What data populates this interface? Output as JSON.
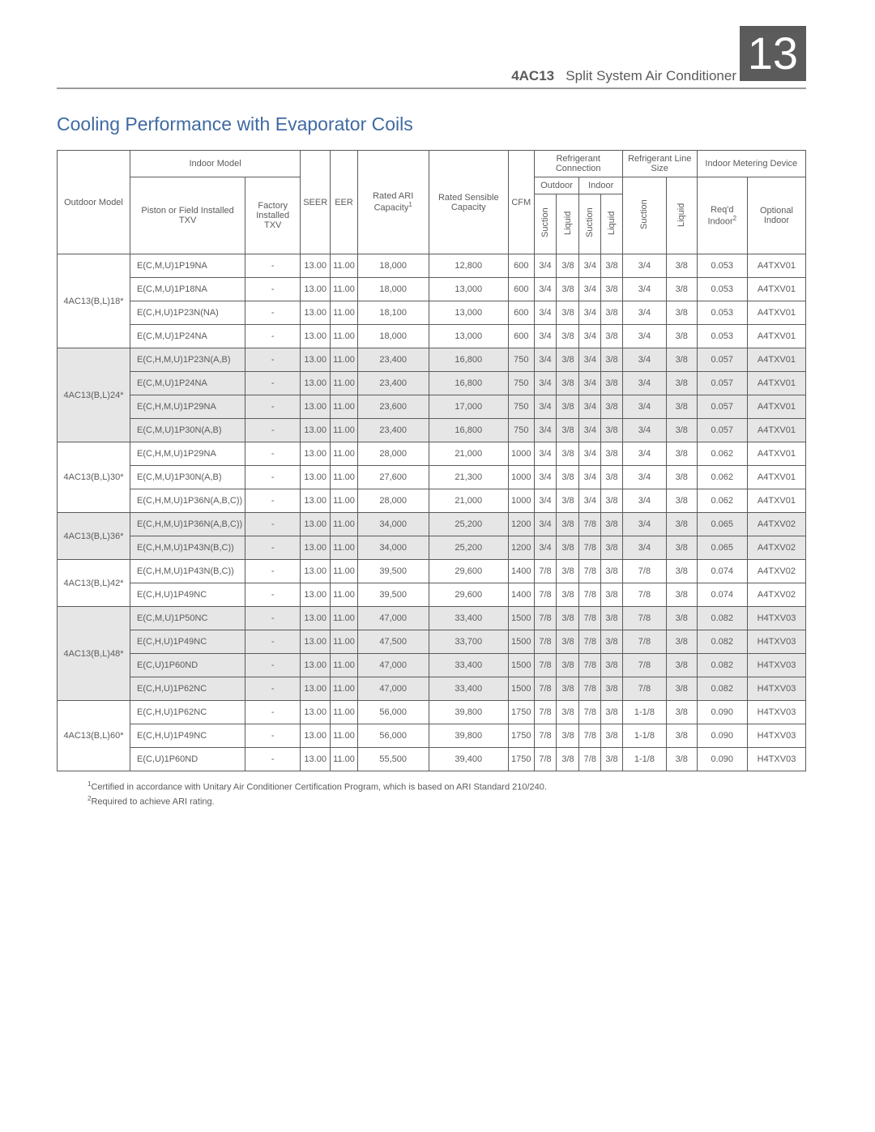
{
  "header": {
    "product_code": "4AC13",
    "product_name": "Split System Air Conditioner",
    "badge": "13"
  },
  "section_title": "Cooling Performance with Evaporator Coils",
  "columns": {
    "outdoor_model": "Outdoor Model",
    "indoor_model": "Indoor Model",
    "piston_field": "Piston or Field Installed TXV",
    "factory_txv": "Factory Installed TXV",
    "seer": "SEER",
    "eer": "EER",
    "rated_ari": "Rated ARI Capacity",
    "rated_sensible": "Rated Sensible Capacity",
    "cfm": "CFM",
    "refrig_conn": "Refrigerant Connection",
    "refrig_line": "Refrigerant Line Size",
    "indoor_metering": "Indoor Metering Device",
    "outdoor": "Outdoor",
    "indoor": "Indoor",
    "suction": "Suction",
    "liquid": "Liquid",
    "reqd_indoor": "Req'd Indoor",
    "optional_indoor": "Optional Indoor"
  },
  "styling": {
    "header_bg": "#5b5b5b",
    "header_text_color": "#ffffff",
    "title_color": "#3f6aa3",
    "text_color": "#5b5b5b",
    "border_color": "#5b5b5b",
    "shade_bg": "#e6e6e6",
    "font_size_body": 11,
    "font_size_title": 23
  },
  "groups": [
    {
      "outdoor": "4AC13(B,L)18*",
      "shade": false,
      "rows": [
        {
          "a": "E(C,M,U)1P19NA",
          "b": "-",
          "seer": "13.00",
          "eer": "11.00",
          "ari": "18,000",
          "sens": "12,800",
          "cfm": "600",
          "os": "3/4",
          "ol": "3/8",
          "is": "3/4",
          "il": "3/8",
          "ls": "3/4",
          "ll": "3/8",
          "req": "0.053",
          "opt": "A4TXV01"
        },
        {
          "a": "E(C,M,U)1P18NA",
          "b": "-",
          "seer": "13.00",
          "eer": "11.00",
          "ari": "18,000",
          "sens": "13,000",
          "cfm": "600",
          "os": "3/4",
          "ol": "3/8",
          "is": "3/4",
          "il": "3/8",
          "ls": "3/4",
          "ll": "3/8",
          "req": "0.053",
          "opt": "A4TXV01"
        },
        {
          "a": "E(C,H,U)1P23N(NA)",
          "b": "-",
          "seer": "13.00",
          "eer": "11.00",
          "ari": "18,100",
          "sens": "13,000",
          "cfm": "600",
          "os": "3/4",
          "ol": "3/8",
          "is": "3/4",
          "il": "3/8",
          "ls": "3/4",
          "ll": "3/8",
          "req": "0.053",
          "opt": "A4TXV01"
        },
        {
          "a": "E(C,M,U)1P24NA",
          "b": "-",
          "seer": "13.00",
          "eer": "11.00",
          "ari": "18,000",
          "sens": "13,000",
          "cfm": "600",
          "os": "3/4",
          "ol": "3/8",
          "is": "3/4",
          "il": "3/8",
          "ls": "3/4",
          "ll": "3/8",
          "req": "0.053",
          "opt": "A4TXV01"
        }
      ]
    },
    {
      "outdoor": "4AC13(B,L)24*",
      "shade": true,
      "rows": [
        {
          "a": "E(C,H,M,U)1P23N(A,B)",
          "b": "-",
          "seer": "13.00",
          "eer": "11.00",
          "ari": "23,400",
          "sens": "16,800",
          "cfm": "750",
          "os": "3/4",
          "ol": "3/8",
          "is": "3/4",
          "il": "3/8",
          "ls": "3/4",
          "ll": "3/8",
          "req": "0.057",
          "opt": "A4TXV01"
        },
        {
          "a": "E(C,M,U)1P24NA",
          "b": "-",
          "seer": "13.00",
          "eer": "11.00",
          "ari": "23,400",
          "sens": "16,800",
          "cfm": "750",
          "os": "3/4",
          "ol": "3/8",
          "is": "3/4",
          "il": "3/8",
          "ls": "3/4",
          "ll": "3/8",
          "req": "0.057",
          "opt": "A4TXV01"
        },
        {
          "a": "E(C,H,M,U)1P29NA",
          "b": "-",
          "seer": "13.00",
          "eer": "11.00",
          "ari": "23,600",
          "sens": "17,000",
          "cfm": "750",
          "os": "3/4",
          "ol": "3/8",
          "is": "3/4",
          "il": "3/8",
          "ls": "3/4",
          "ll": "3/8",
          "req": "0.057",
          "opt": "A4TXV01"
        },
        {
          "a": "E(C,M,U)1P30N(A,B)",
          "b": "-",
          "seer": "13.00",
          "eer": "11.00",
          "ari": "23,400",
          "sens": "16,800",
          "cfm": "750",
          "os": "3/4",
          "ol": "3/8",
          "is": "3/4",
          "il": "3/8",
          "ls": "3/4",
          "ll": "3/8",
          "req": "0.057",
          "opt": "A4TXV01"
        }
      ]
    },
    {
      "outdoor": "4AC13(B,L)30*",
      "shade": false,
      "rows": [
        {
          "a": "E(C,H,M,U)1P29NA",
          "b": "-",
          "seer": "13.00",
          "eer": "11.00",
          "ari": "28,000",
          "sens": "21,000",
          "cfm": "1000",
          "os": "3/4",
          "ol": "3/8",
          "is": "3/4",
          "il": "3/8",
          "ls": "3/4",
          "ll": "3/8",
          "req": "0.062",
          "opt": "A4TXV01"
        },
        {
          "a": "E(C,M,U)1P30N(A,B)",
          "b": "-",
          "seer": "13.00",
          "eer": "11.00",
          "ari": "27,600",
          "sens": "21,300",
          "cfm": "1000",
          "os": "3/4",
          "ol": "3/8",
          "is": "3/4",
          "il": "3/8",
          "ls": "3/4",
          "ll": "3/8",
          "req": "0.062",
          "opt": "A4TXV01"
        },
        {
          "a": "E(C,H,M,U)1P36N(A,B,C))",
          "b": "-",
          "seer": "13.00",
          "eer": "11.00",
          "ari": "28,000",
          "sens": "21,000",
          "cfm": "1000",
          "os": "3/4",
          "ol": "3/8",
          "is": "3/4",
          "il": "3/8",
          "ls": "3/4",
          "ll": "3/8",
          "req": "0.062",
          "opt": "A4TXV01"
        }
      ]
    },
    {
      "outdoor": "4AC13(B,L)36*",
      "shade": true,
      "rows": [
        {
          "a": "E(C,H,M,U)1P36N(A,B,C))",
          "b": "-",
          "seer": "13.00",
          "eer": "11.00",
          "ari": "34,000",
          "sens": "25,200",
          "cfm": "1200",
          "os": "3/4",
          "ol": "3/8",
          "is": "7/8",
          "il": "3/8",
          "ls": "3/4",
          "ll": "3/8",
          "req": "0.065",
          "opt": "A4TXV02"
        },
        {
          "a": "E(C,H,M,U)1P43N(B,C))",
          "b": "-",
          "seer": "13.00",
          "eer": "11.00",
          "ari": "34,000",
          "sens": "25,200",
          "cfm": "1200",
          "os": "3/4",
          "ol": "3/8",
          "is": "7/8",
          "il": "3/8",
          "ls": "3/4",
          "ll": "3/8",
          "req": "0.065",
          "opt": "A4TXV02"
        }
      ]
    },
    {
      "outdoor": "4AC13(B,L)42*",
      "shade": false,
      "rows": [
        {
          "a": "E(C,H,M,U)1P43N(B,C))",
          "b": "-",
          "seer": "13.00",
          "eer": "11.00",
          "ari": "39,500",
          "sens": "29,600",
          "cfm": "1400",
          "os": "7/8",
          "ol": "3/8",
          "is": "7/8",
          "il": "3/8",
          "ls": "7/8",
          "ll": "3/8",
          "req": "0.074",
          "opt": "A4TXV02"
        },
        {
          "a": "E(C,H,U)1P49NC",
          "b": "-",
          "seer": "13.00",
          "eer": "11.00",
          "ari": "39,500",
          "sens": "29,600",
          "cfm": "1400",
          "os": "7/8",
          "ol": "3/8",
          "is": "7/8",
          "il": "3/8",
          "ls": "7/8",
          "ll": "3/8",
          "req": "0.074",
          "opt": "A4TXV02"
        }
      ]
    },
    {
      "outdoor": "4AC13(B,L)48*",
      "shade": true,
      "rows": [
        {
          "a": "E(C,M,U)1P50NC",
          "b": "-",
          "seer": "13.00",
          "eer": "11.00",
          "ari": "47,000",
          "sens": "33,400",
          "cfm": "1500",
          "os": "7/8",
          "ol": "3/8",
          "is": "7/8",
          "il": "3/8",
          "ls": "7/8",
          "ll": "3/8",
          "req": "0.082",
          "opt": "H4TXV03"
        },
        {
          "a": "E(C,H,U)1P49NC",
          "b": "-",
          "seer": "13.00",
          "eer": "11.00",
          "ari": "47,500",
          "sens": "33,700",
          "cfm": "1500",
          "os": "7/8",
          "ol": "3/8",
          "is": "7/8",
          "il": "3/8",
          "ls": "7/8",
          "ll": "3/8",
          "req": "0.082",
          "opt": "H4TXV03"
        },
        {
          "a": "E(C,U)1P60ND",
          "b": "-",
          "seer": "13.00",
          "eer": "11.00",
          "ari": "47,000",
          "sens": "33,400",
          "cfm": "1500",
          "os": "7/8",
          "ol": "3/8",
          "is": "7/8",
          "il": "3/8",
          "ls": "7/8",
          "ll": "3/8",
          "req": "0.082",
          "opt": "H4TXV03"
        },
        {
          "a": "E(C,H,U)1P62NC",
          "b": "-",
          "seer": "13.00",
          "eer": "11.00",
          "ari": "47,000",
          "sens": "33,400",
          "cfm": "1500",
          "os": "7/8",
          "ol": "3/8",
          "is": "7/8",
          "il": "3/8",
          "ls": "7/8",
          "ll": "3/8",
          "req": "0.082",
          "opt": "H4TXV03"
        }
      ]
    },
    {
      "outdoor": "4AC13(B,L)60*",
      "shade": false,
      "rows": [
        {
          "a": "E(C,H,U)1P62NC",
          "b": "-",
          "seer": "13.00",
          "eer": "11.00",
          "ari": "56,000",
          "sens": "39,800",
          "cfm": "1750",
          "os": "7/8",
          "ol": "3/8",
          "is": "7/8",
          "il": "3/8",
          "ls": "1-1/8",
          "ll": "3/8",
          "req": "0.090",
          "opt": "H4TXV03"
        },
        {
          "a": "E(C,H,U)1P49NC",
          "b": "-",
          "seer": "13.00",
          "eer": "11.00",
          "ari": "56,000",
          "sens": "39,800",
          "cfm": "1750",
          "os": "7/8",
          "ol": "3/8",
          "is": "7/8",
          "il": "3/8",
          "ls": "1-1/8",
          "ll": "3/8",
          "req": "0.090",
          "opt": "H4TXV03"
        },
        {
          "a": "E(C,U)1P60ND",
          "b": "-",
          "seer": "13.00",
          "eer": "11.00",
          "ari": "55,500",
          "sens": "39,400",
          "cfm": "1750",
          "os": "7/8",
          "ol": "3/8",
          "is": "7/8",
          "il": "3/8",
          "ls": "1-1/8",
          "ll": "3/8",
          "req": "0.090",
          "opt": "H4TXV03"
        }
      ]
    }
  ],
  "footnotes": {
    "f1": "Certified in accordance with Unitary Air Conditioner Certification Program, which is based on ARI Standard 210/240.",
    "f2": "Required to achieve ARI rating."
  }
}
